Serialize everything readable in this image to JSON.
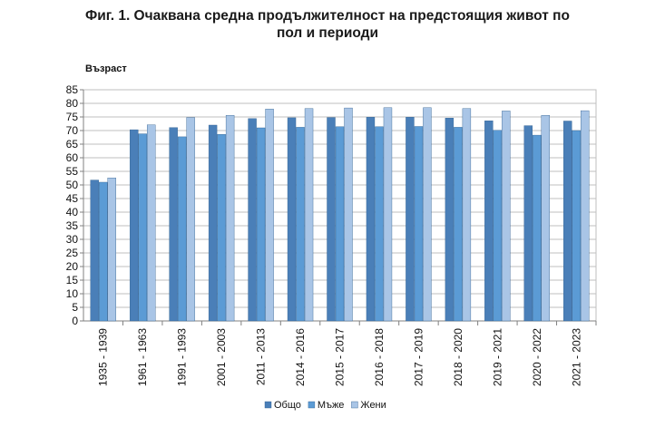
{
  "chart_data": {
    "type": "bar",
    "title": "Фиг. 1. Очаквана средна продължителност на предстоящия живот по пол и периоди",
    "title_lines": [
      "Фиг. 1. Очаквана средна продължителност на предстоящия живот по",
      "пол и периоди"
    ],
    "ylabel": "Възраст",
    "xlabel": "",
    "ylim": [
      0,
      85
    ],
    "yticks": [
      0,
      5,
      10,
      15,
      20,
      25,
      30,
      35,
      40,
      45,
      50,
      55,
      60,
      65,
      70,
      75,
      80,
      85
    ],
    "grid": true,
    "legend_position": "bottom",
    "categories": [
      "1935 - 1939",
      "1961 - 1963",
      "1991 - 1993",
      "2001 - 2003",
      "2011 - 2013",
      "2014 - 2016",
      "2015 - 2017",
      "2016 - 2018",
      "2017 - 2019",
      "2018 - 2020",
      "2019 - 2021",
      "2020 - 2022",
      "2021 - 2023"
    ],
    "series": [
      {
        "name": "Общо",
        "color": "#4a7fb8",
        "values": [
          51.8,
          70.3,
          71.1,
          72.0,
          74.4,
          74.7,
          74.8,
          74.9,
          74.9,
          74.6,
          73.6,
          71.8,
          73.5
        ]
      },
      {
        "name": "Мъже",
        "color": "#5b9bd5",
        "values": [
          51.0,
          68.8,
          67.7,
          68.6,
          71.0,
          71.2,
          71.4,
          71.4,
          71.5,
          71.2,
          70.1,
          68.3,
          70.0
        ]
      },
      {
        "name": "Жени",
        "color": "#a9c5e6",
        "values": [
          52.6,
          72.1,
          74.8,
          75.6,
          77.9,
          78.1,
          78.3,
          78.4,
          78.4,
          78.1,
          77.2,
          75.6,
          77.3
        ]
      }
    ]
  }
}
